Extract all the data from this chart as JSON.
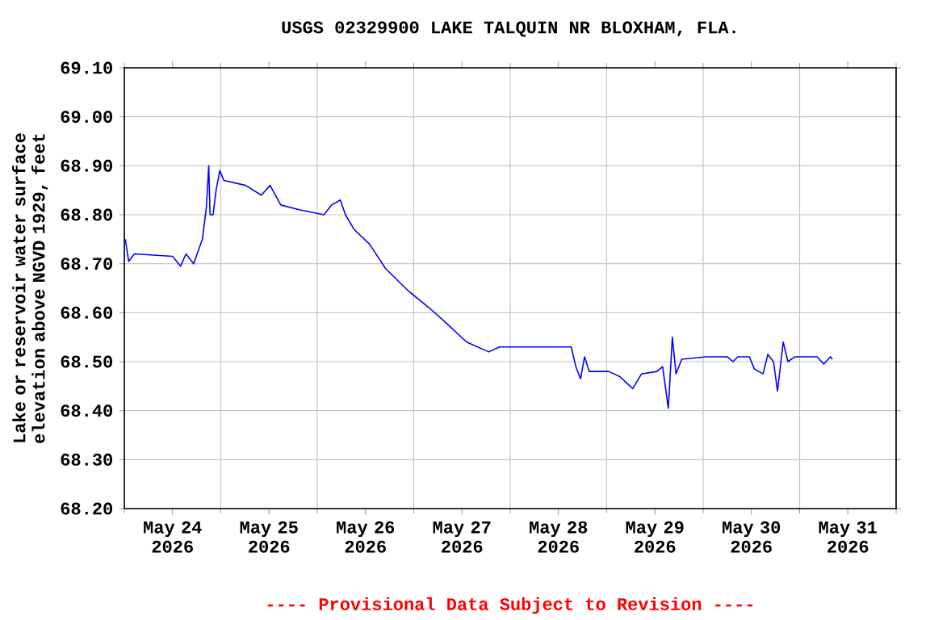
{
  "chart_data": {
    "type": "line",
    "title": "USGS 02329900 LAKE TALQUIN NR BLOXHAM, FLA.",
    "ylabel": "Lake or reservoir water surface elevation above NGVD 1929, feet",
    "annotations": [
      "---- Provisional Data Subject to Revision ----"
    ],
    "grid": true,
    "xlim": [
      "2026-05-24T00:00",
      "2026-06-01T00:00"
    ],
    "xticks": [
      {
        "value": "2026-05-24T00:00",
        "label": null
      },
      {
        "value": "2026-05-25T00:00",
        "label": null
      },
      {
        "value": "2026-05-26T00:00",
        "label": null
      },
      {
        "value": "2026-05-27T00:00",
        "label": null
      },
      {
        "value": "2026-05-28T00:00",
        "label": null
      },
      {
        "value": "2026-05-29T00:00",
        "label": null
      },
      {
        "value": "2026-05-30T00:00",
        "label": null
      },
      {
        "value": "2026-05-31T00:00",
        "label": null
      },
      {
        "value": "2026-06-01T00:00",
        "label": null
      },
      {
        "value": "2026-05-24T12:00",
        "label": "May 24 2026"
      },
      {
        "value": "2026-05-25T12:00",
        "label": "May 25 2026"
      },
      {
        "value": "2026-05-26T12:00",
        "label": "May 26 2026"
      },
      {
        "value": "2026-05-27T12:00",
        "label": "May 27 2026"
      },
      {
        "value": "2026-05-28T12:00",
        "label": "May 28 2026"
      },
      {
        "value": "2026-05-29T12:00",
        "label": "May 29 2026"
      },
      {
        "value": "2026-05-30T12:00",
        "label": "May 30 2026"
      },
      {
        "value": "2026-05-31T12:00",
        "label": "May 31 2026"
      }
    ],
    "ylim": [
      68.2,
      69.1
    ],
    "yticks": [
      {
        "value": 68.2,
        "label": "68.20"
      },
      {
        "value": 68.3,
        "label": "68.30"
      },
      {
        "value": 68.4,
        "label": "68.40"
      },
      {
        "value": 68.5,
        "label": "68.50"
      },
      {
        "value": 68.6,
        "label": "68.60"
      },
      {
        "value": 68.7,
        "label": "68.70"
      },
      {
        "value": 68.8,
        "label": "68.80"
      },
      {
        "value": 68.9,
        "label": "68.90"
      },
      {
        "value": 69.0,
        "label": "69.00"
      },
      {
        "value": 69.1,
        "label": "69.10"
      }
    ],
    "series": [
      {
        "color": "#0000ff",
        "x": [
          "2026-05-24T00:15",
          "2026-05-24T01:05",
          "2026-05-24T02:30",
          "2026-05-24T12:00",
          "2026-05-24T14:00",
          "2026-05-24T15:20",
          "2026-05-24T17:15",
          "2026-05-24T19:25",
          "2026-05-24T20:25",
          "2026-05-24T21:00",
          "2026-05-24T21:20",
          "2026-05-24T22:05",
          "2026-05-24T22:50",
          "2026-05-24T23:45",
          "2026-05-25T00:45",
          "2026-05-25T06:10",
          "2026-05-25T10:05",
          "2026-05-25T12:15",
          "2026-05-25T14:55",
          "2026-05-25T19:40",
          "2026-05-26T01:40",
          "2026-05-26T03:35",
          "2026-05-26T05:45",
          "2026-05-26T07:00",
          "2026-05-26T09:10",
          "2026-05-26T13:00",
          "2026-05-26T17:00",
          "2026-05-26T22:35",
          "2026-05-27T03:50",
          "2026-05-27T07:55",
          "2026-05-27T13:10",
          "2026-05-27T18:40",
          "2026-05-27T21:20",
          "2026-05-28T15:10",
          "2026-05-28T16:20",
          "2026-05-28T17:30",
          "2026-05-28T18:30",
          "2026-05-28T19:40",
          "2026-05-29T00:30",
          "2026-05-29T03:10",
          "2026-05-29T06:30",
          "2026-05-29T08:40",
          "2026-05-29T12:30",
          "2026-05-29T13:55",
          "2026-05-29T15:20",
          "2026-05-29T16:20",
          "2026-05-29T17:15",
          "2026-05-29T18:40",
          "2026-05-30T00:45",
          "2026-05-30T06:00",
          "2026-05-30T07:25",
          "2026-05-30T08:40",
          "2026-05-30T11:30",
          "2026-05-30T12:45",
          "2026-05-30T14:55",
          "2026-05-30T16:05",
          "2026-05-30T17:30",
          "2026-05-30T18:30",
          "2026-05-30T19:55",
          "2026-05-30T21:05",
          "2026-05-30T22:50",
          "2026-05-31T04:20",
          "2026-05-31T06:00",
          "2026-05-31T07:40",
          "2026-05-31T08:10"
        ],
        "values": [
          68.75,
          68.705,
          68.72,
          68.715,
          68.695,
          68.72,
          68.7,
          68.75,
          68.815,
          68.9,
          68.8,
          68.8,
          68.85,
          68.89,
          68.87,
          68.86,
          68.84,
          68.86,
          68.82,
          68.81,
          68.8,
          68.82,
          68.83,
          68.8,
          68.77,
          68.74,
          68.69,
          68.645,
          68.61,
          68.58,
          68.54,
          68.52,
          68.53,
          68.53,
          68.49,
          68.465,
          68.51,
          68.48,
          68.48,
          68.47,
          68.445,
          68.475,
          68.48,
          68.49,
          68.405,
          68.55,
          68.475,
          68.505,
          68.51,
          68.51,
          68.5,
          68.51,
          68.51,
          68.485,
          68.475,
          68.515,
          68.5,
          68.44,
          68.54,
          68.5,
          68.51,
          68.51,
          68.495,
          68.51,
          68.505
        ]
      }
    ]
  }
}
